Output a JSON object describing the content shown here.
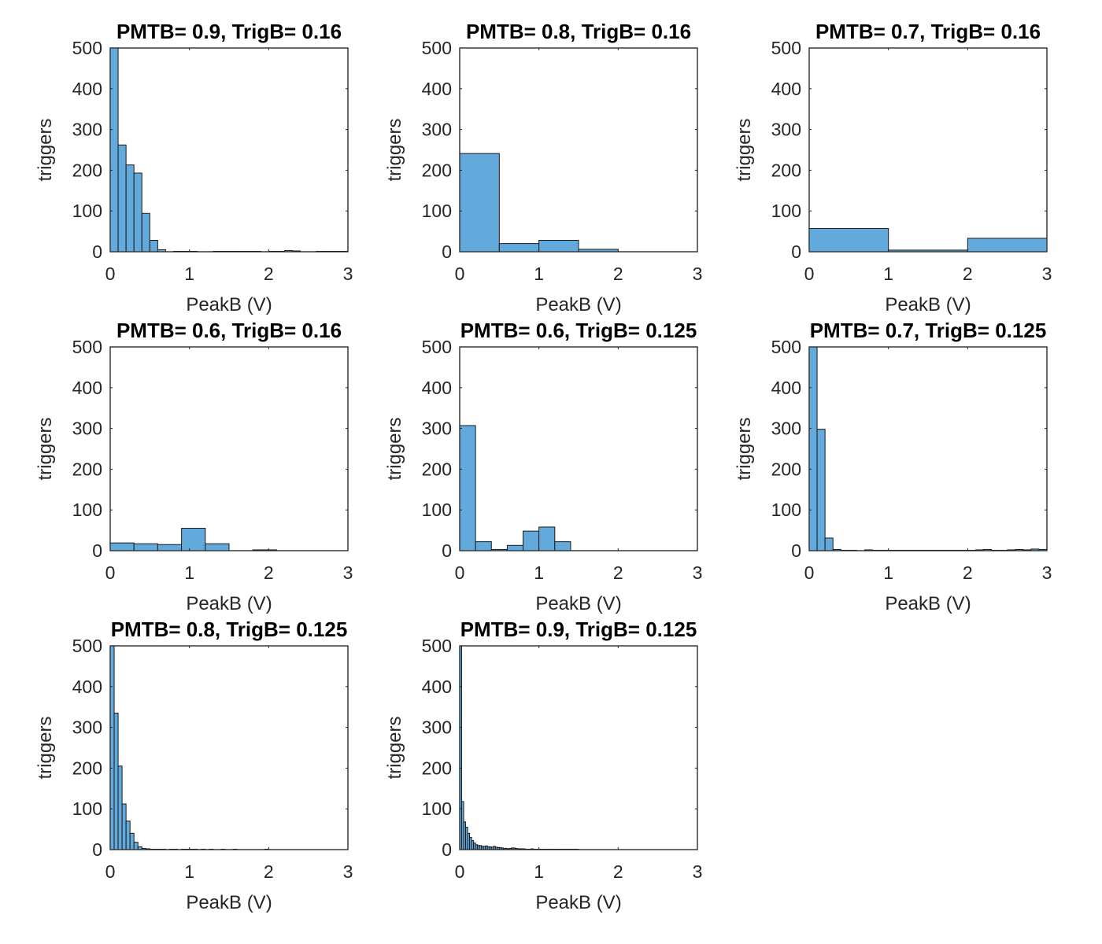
{
  "colors": {
    "bar_fill": "#63aadc",
    "bar_edge": "#1a1a1a",
    "axes": "#262626"
  },
  "chart_data": [
    {
      "type": "bar",
      "title": "PMTB= 0.9, TrigB= 0.16",
      "xlabel": "PeakB (V)",
      "ylabel": "triggers",
      "xlim": [
        0,
        3
      ],
      "ylim": [
        0,
        500
      ],
      "xticks": [
        "0",
        "1",
        "2",
        "3"
      ],
      "yticks": [
        "0",
        "100",
        "200",
        "300",
        "400",
        "500"
      ],
      "bin_width": 0.1,
      "bin_start": 0,
      "values": [
        500,
        262,
        213,
        193,
        94,
        28,
        5,
        0,
        1,
        1,
        1,
        0,
        0,
        1,
        1,
        1,
        1,
        1,
        1,
        0,
        1,
        1,
        3,
        2,
        0,
        0,
        1,
        1,
        1,
        1
      ]
    },
    {
      "type": "bar",
      "title": "PMTB= 0.8, TrigB= 0.16",
      "xlabel": "PeakB (V)",
      "ylabel": "triggers",
      "xlim": [
        0,
        3
      ],
      "ylim": [
        0,
        500
      ],
      "xticks": [
        "0",
        "1",
        "2",
        "3"
      ],
      "yticks": [
        "0",
        "100",
        "200",
        "300",
        "400",
        "500"
      ],
      "bin_width": 0.5,
      "bin_start": 0,
      "values": [
        241,
        20,
        28,
        6
      ]
    },
    {
      "type": "bar",
      "title": "PMTB= 0.7, TrigB= 0.16",
      "xlabel": "PeakB (V)",
      "ylabel": "triggers",
      "xlim": [
        0,
        3
      ],
      "ylim": [
        0,
        500
      ],
      "xticks": [
        "0",
        "1",
        "2",
        "3"
      ],
      "yticks": [
        "0",
        "100",
        "200",
        "300",
        "400",
        "500"
      ],
      "bin_width": 1,
      "bin_start": 0,
      "values": [
        57,
        4,
        33
      ]
    },
    {
      "type": "bar",
      "title": "PMTB= 0.6, TrigB= 0.16",
      "xlabel": "PeakB (V)",
      "ylabel": "triggers",
      "xlim": [
        0,
        3
      ],
      "ylim": [
        0,
        500
      ],
      "xticks": [
        "0",
        "1",
        "2",
        "3"
      ],
      "yticks": [
        "0",
        "100",
        "200",
        "300",
        "400",
        "500"
      ],
      "bin_width": 0.3,
      "bin_start": 0,
      "values": [
        19,
        17,
        15,
        55,
        17,
        0,
        2
      ]
    },
    {
      "type": "bar",
      "title": "PMTB= 0.6, TrigB= 0.125",
      "xlabel": "PeakB (V)",
      "ylabel": "triggers",
      "xlim": [
        0,
        3
      ],
      "ylim": [
        0,
        500
      ],
      "xticks": [
        "0",
        "1",
        "2",
        "3"
      ],
      "yticks": [
        "0",
        "100",
        "200",
        "300",
        "400",
        "500"
      ],
      "bin_width": 0.2,
      "bin_start": 0,
      "values": [
        307,
        22,
        3,
        13,
        48,
        58,
        22
      ]
    },
    {
      "type": "bar",
      "title": "PMTB= 0.7, TrigB= 0.125",
      "xlabel": "PeakB (V)",
      "ylabel": "triggers",
      "xlim": [
        0,
        3
      ],
      "ylim": [
        0,
        500
      ],
      "xticks": [
        "0",
        "1",
        "2",
        "3"
      ],
      "yticks": [
        "0",
        "100",
        "200",
        "300",
        "400",
        "500"
      ],
      "bin_width": 0.1,
      "bin_start": 0,
      "values": [
        500,
        298,
        31,
        3,
        1,
        1,
        0,
        2,
        1,
        1,
        1,
        1,
        1,
        1,
        1,
        1,
        1,
        1,
        1,
        1,
        1,
        2,
        3,
        1,
        1,
        2,
        3,
        2,
        4,
        3
      ]
    },
    {
      "type": "bar",
      "title": "PMTB= 0.8, TrigB= 0.125",
      "xlabel": "PeakB (V)",
      "ylabel": "triggers",
      "xlim": [
        0,
        3
      ],
      "ylim": [
        0,
        500
      ],
      "xticks": [
        "0",
        "1",
        "2",
        "3"
      ],
      "yticks": [
        "0",
        "100",
        "200",
        "300",
        "400",
        "500"
      ],
      "bin_width": 0.05,
      "bin_start": 0,
      "values": [
        500,
        335,
        205,
        112,
        70,
        40,
        18,
        7,
        3,
        2,
        1,
        1,
        1,
        1,
        0,
        1,
        1,
        0,
        1,
        1,
        1,
        1,
        0,
        1,
        0,
        1,
        0,
        0,
        1,
        0,
        0,
        1,
        0,
        0,
        0,
        0,
        0,
        0,
        0,
        1
      ]
    },
    {
      "type": "bar",
      "title": "PMTB= 0.9, TrigB= 0.125",
      "xlabel": "PeakB (V)",
      "ylabel": "triggers",
      "xlim": [
        0,
        3
      ],
      "ylim": [
        0,
        500
      ],
      "xticks": [
        "0",
        "1",
        "2",
        "3"
      ],
      "yticks": [
        "0",
        "100",
        "200",
        "300",
        "400",
        "500"
      ],
      "bin_width": 0.025,
      "bin_start": 0,
      "values": [
        500,
        118,
        68,
        55,
        40,
        30,
        22,
        16,
        12,
        10,
        10,
        8,
        8,
        9,
        7,
        7,
        6,
        8,
        6,
        5,
        5,
        4,
        3,
        3,
        2,
        3,
        4,
        4,
        3,
        2,
        2,
        2,
        2,
        1,
        1,
        1,
        2,
        1,
        1,
        1,
        1,
        1,
        1,
        1,
        1,
        1,
        1,
        1,
        1,
        1,
        1,
        1,
        1,
        1,
        1,
        1,
        1,
        1,
        1,
        1
      ]
    }
  ]
}
